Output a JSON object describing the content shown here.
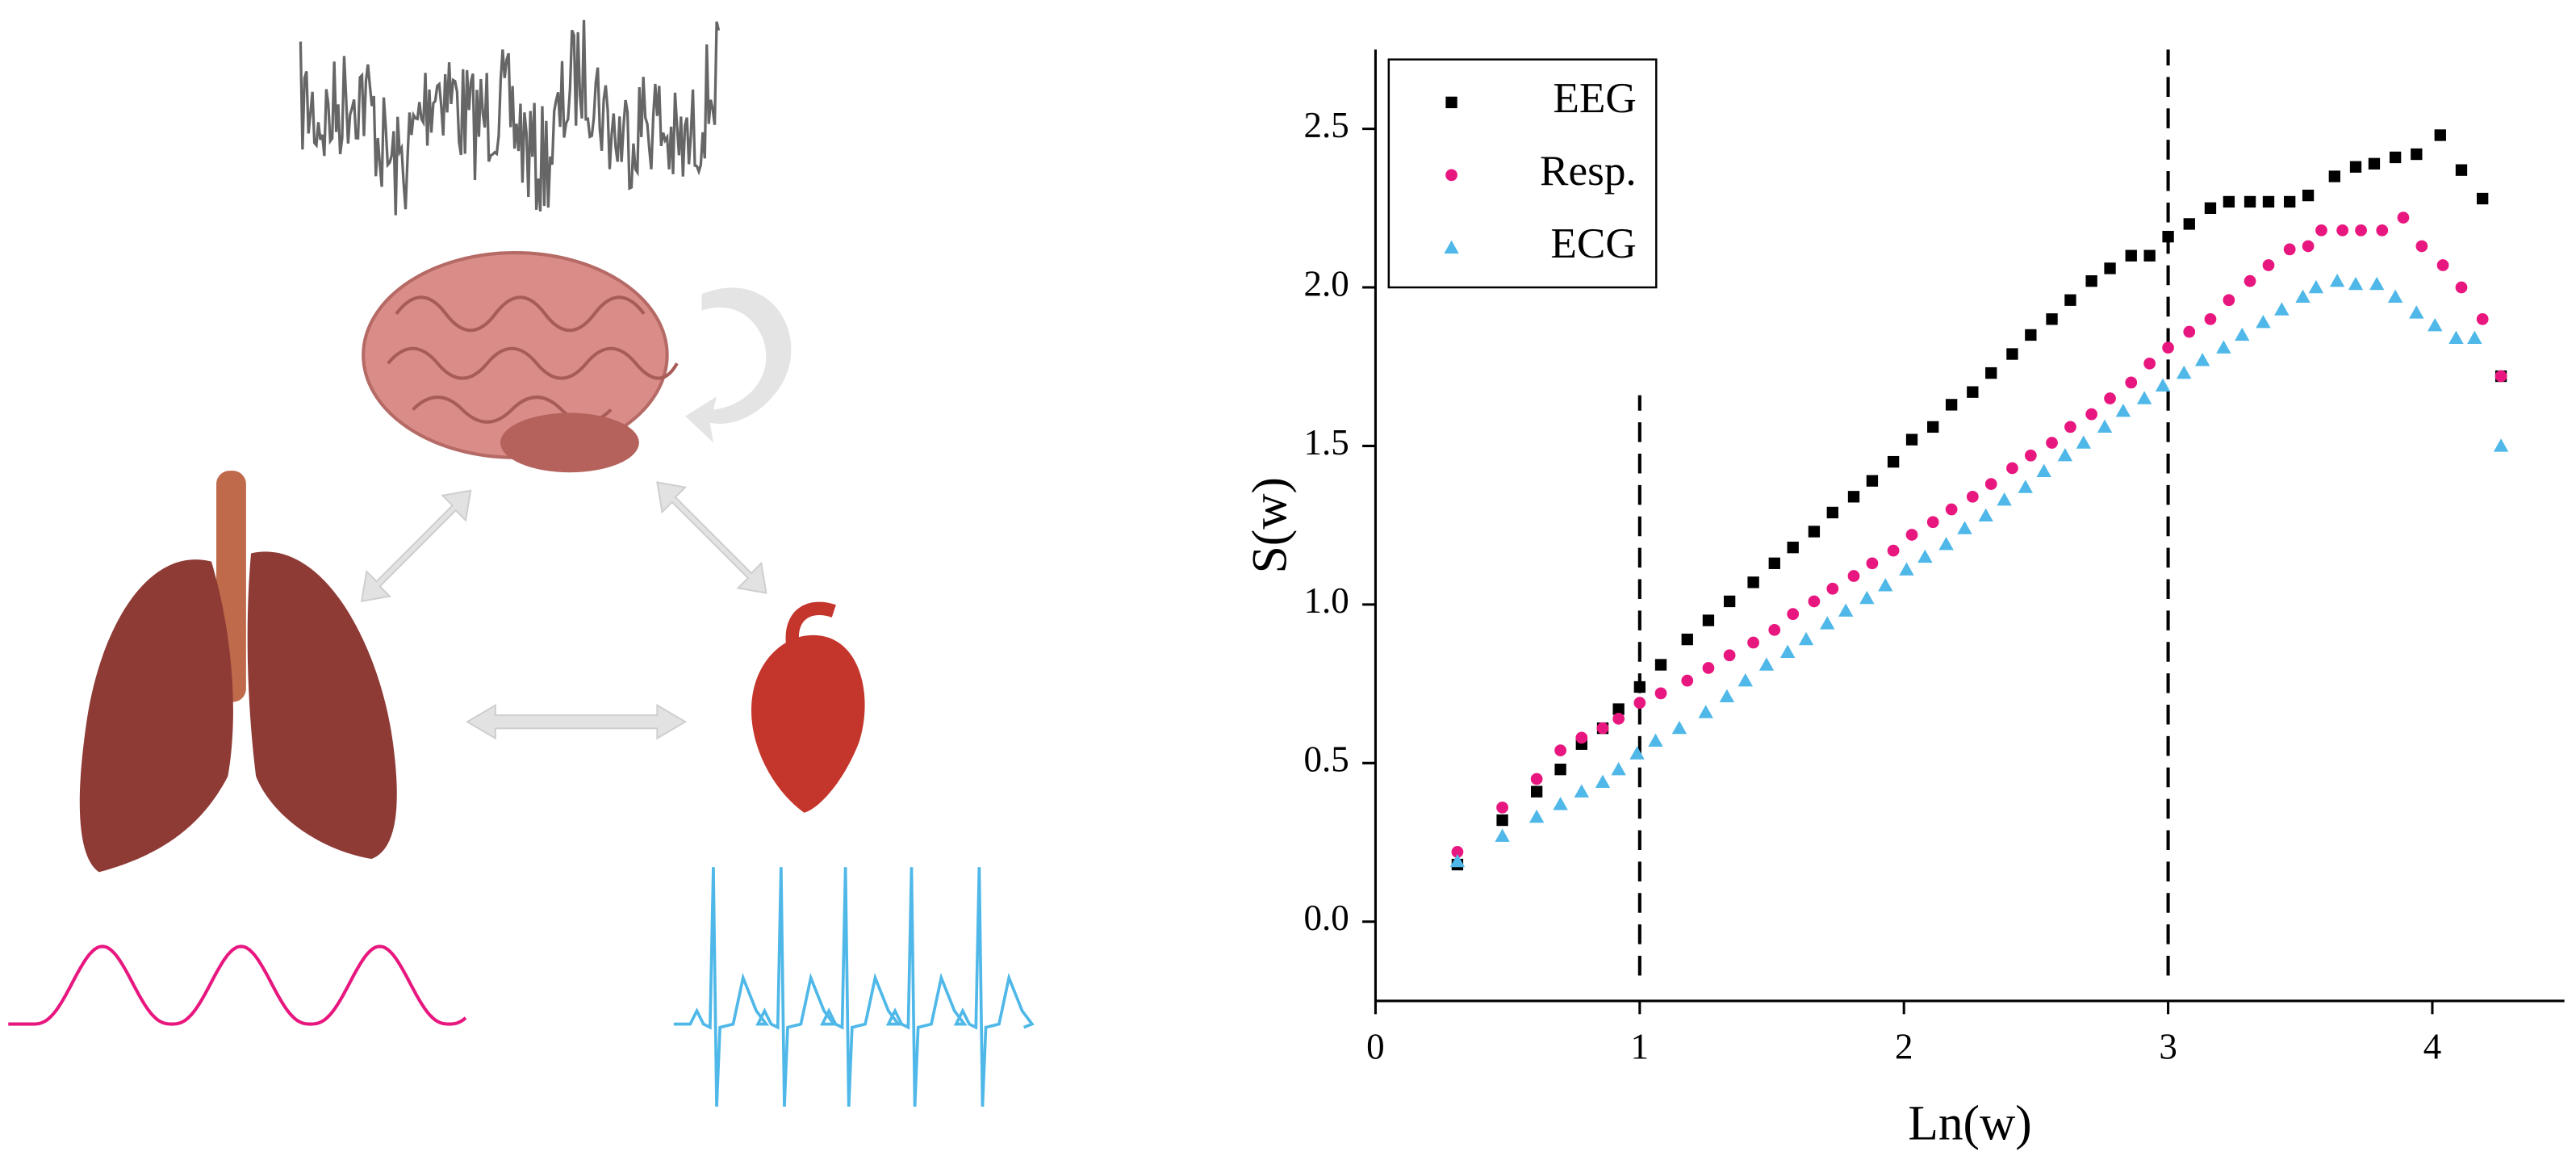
{
  "chart_data": {
    "type": "scatter",
    "xlabel": "Ln(w)",
    "ylabel": "S(w)",
    "xlim": [
      0,
      4.5
    ],
    "ylim": [
      -0.25,
      2.75
    ],
    "xticks": [
      0,
      1,
      2,
      3,
      4
    ],
    "yticks": [
      {
        "value": 0,
        "label": "0.0"
      },
      0.5,
      {
        "value": 1,
        "label": "1.0"
      },
      1.5,
      {
        "value": 2,
        "label": "2.0"
      },
      2.5
    ],
    "legend": "upper left",
    "vlines": [
      {
        "x": 1,
        "y": [
          -0.17,
          1.66
        ]
      },
      {
        "x": 3,
        "y": [
          -0.17,
          2.75
        ]
      }
    ],
    "series": [
      {
        "name": "EEG",
        "color": "#000000",
        "marker": "square",
        "x": [
          0.31,
          0.48,
          0.61,
          0.7,
          0.78,
          0.86,
          0.92,
          1.0,
          1.08,
          1.18,
          1.26,
          1.34,
          1.43,
          1.51,
          1.58,
          1.66,
          1.73,
          1.81,
          1.88,
          1.96,
          2.03,
          2.11,
          2.18,
          2.26,
          2.33,
          2.41,
          2.48,
          2.56,
          2.63,
          2.71,
          2.78,
          2.86,
          2.93,
          3.0,
          3.08,
          3.16,
          3.23,
          3.31,
          3.38,
          3.46,
          3.53,
          3.63,
          3.71,
          3.78,
          3.86,
          3.94,
          4.03,
          4.11,
          4.19,
          4.26
        ],
        "values": [
          0.18,
          0.32,
          0.41,
          0.48,
          0.56,
          0.61,
          0.67,
          0.74,
          0.81,
          0.89,
          0.95,
          1.01,
          1.07,
          1.13,
          1.18,
          1.23,
          1.29,
          1.34,
          1.39,
          1.45,
          1.52,
          1.56,
          1.63,
          1.67,
          1.73,
          1.79,
          1.85,
          1.9,
          1.96,
          2.02,
          2.06,
          2.1,
          2.1,
          2.16,
          2.2,
          2.25,
          2.27,
          2.27,
          2.27,
          2.27,
          2.29,
          2.35,
          2.38,
          2.39,
          2.41,
          2.42,
          2.48,
          2.37,
          2.28,
          1.72
        ]
      },
      {
        "name": "Resp.",
        "color": "#e8177f",
        "marker": "circle",
        "x": [
          0.31,
          0.48,
          0.61,
          0.7,
          0.78,
          0.86,
          0.92,
          1.0,
          1.08,
          1.18,
          1.26,
          1.34,
          1.43,
          1.51,
          1.58,
          1.66,
          1.73,
          1.81,
          1.88,
          1.96,
          2.03,
          2.11,
          2.18,
          2.26,
          2.33,
          2.41,
          2.48,
          2.56,
          2.63,
          2.71,
          2.78,
          2.86,
          2.93,
          3.0,
          3.08,
          3.16,
          3.23,
          3.31,
          3.38,
          3.46,
          3.53,
          3.58,
          3.66,
          3.73,
          3.81,
          3.89,
          3.96,
          4.04,
          4.11,
          4.19,
          4.26
        ],
        "values": [
          0.22,
          0.36,
          0.45,
          0.54,
          0.58,
          0.61,
          0.64,
          0.69,
          0.72,
          0.76,
          0.8,
          0.84,
          0.88,
          0.92,
          0.97,
          1.01,
          1.05,
          1.09,
          1.13,
          1.17,
          1.22,
          1.26,
          1.3,
          1.34,
          1.38,
          1.43,
          1.47,
          1.51,
          1.56,
          1.6,
          1.65,
          1.7,
          1.76,
          1.81,
          1.86,
          1.9,
          1.96,
          2.02,
          2.07,
          2.12,
          2.13,
          2.18,
          2.18,
          2.18,
          2.18,
          2.22,
          2.13,
          2.07,
          2.0,
          1.9,
          1.72
        ]
      },
      {
        "name": "ECG",
        "color": "#4fb8e8",
        "marker": "triangle",
        "x": [
          0.31,
          0.48,
          0.61,
          0.7,
          0.78,
          0.86,
          0.92,
          0.99,
          1.06,
          1.15,
          1.25,
          1.33,
          1.4,
          1.48,
          1.56,
          1.63,
          1.71,
          1.78,
          1.86,
          1.93,
          2.01,
          2.08,
          2.16,
          2.23,
          2.31,
          2.38,
          2.46,
          2.53,
          2.61,
          2.68,
          2.76,
          2.83,
          2.91,
          2.98,
          3.06,
          3.13,
          3.21,
          3.28,
          3.36,
          3.43,
          3.51,
          3.56,
          3.64,
          3.71,
          3.79,
          3.86,
          3.94,
          4.01,
          4.09,
          4.16,
          4.26
        ],
        "values": [
          0.19,
          0.27,
          0.33,
          0.37,
          0.41,
          0.44,
          0.48,
          0.53,
          0.57,
          0.61,
          0.66,
          0.71,
          0.76,
          0.81,
          0.85,
          0.89,
          0.94,
          0.98,
          1.02,
          1.06,
          1.11,
          1.15,
          1.19,
          1.24,
          1.28,
          1.33,
          1.37,
          1.42,
          1.47,
          1.51,
          1.56,
          1.61,
          1.65,
          1.69,
          1.73,
          1.77,
          1.81,
          1.85,
          1.89,
          1.93,
          1.97,
          2.0,
          2.02,
          2.01,
          2.01,
          1.97,
          1.92,
          1.88,
          1.84,
          1.84,
          1.5
        ]
      }
    ]
  }
}
